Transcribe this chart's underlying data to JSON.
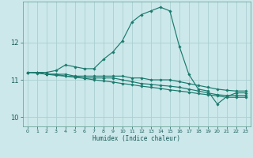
{
  "xlabel": "Humidex (Indice chaleur)",
  "bg_color": "#cce8ea",
  "grid_color": "#aacfd2",
  "line_color": "#1a7a6e",
  "xlim": [
    -0.5,
    23.5
  ],
  "ylim": [
    9.75,
    13.1
  ],
  "yticks": [
    10,
    11,
    12
  ],
  "xticks": [
    0,
    1,
    2,
    3,
    4,
    5,
    6,
    7,
    8,
    9,
    10,
    11,
    12,
    13,
    14,
    15,
    16,
    17,
    18,
    19,
    20,
    21,
    22,
    23
  ],
  "series": [
    {
      "x": [
        0,
        1,
        2,
        3,
        4,
        5,
        6,
        7,
        8,
        9,
        10,
        11,
        12,
        13,
        14,
        15,
        16,
        17,
        18,
        19,
        20,
        21,
        22,
        23
      ],
      "y": [
        11.2,
        11.2,
        11.2,
        11.25,
        11.4,
        11.35,
        11.3,
        11.3,
        11.55,
        11.75,
        12.05,
        12.55,
        12.75,
        12.85,
        12.95,
        12.85,
        11.9,
        11.15,
        10.75,
        10.7,
        10.35,
        10.55,
        10.65,
        10.65
      ]
    },
    {
      "x": [
        0,
        1,
        2,
        3,
        4,
        5,
        6,
        7,
        8,
        9,
        10,
        11,
        12,
        13,
        14,
        15,
        16,
        17,
        18,
        19,
        20,
        21,
        22,
        23
      ],
      "y": [
        11.2,
        11.2,
        11.15,
        11.15,
        11.15,
        11.1,
        11.1,
        11.1,
        11.1,
        11.1,
        11.1,
        11.05,
        11.05,
        11.0,
        11.0,
        11.0,
        10.95,
        10.9,
        10.85,
        10.8,
        10.75,
        10.72,
        10.7,
        10.7
      ]
    },
    {
      "x": [
        0,
        1,
        2,
        3,
        4,
        5,
        6,
        7,
        8,
        9,
        10,
        11,
        12,
        13,
        14,
        15,
        16,
        17,
        18,
        19,
        20,
        21,
        22,
        23
      ],
      "y": [
        11.2,
        11.2,
        11.15,
        11.15,
        11.1,
        11.08,
        11.05,
        11.05,
        11.05,
        11.05,
        11.0,
        10.95,
        10.9,
        10.88,
        10.85,
        10.83,
        10.8,
        10.75,
        10.7,
        10.65,
        10.6,
        10.58,
        10.58,
        10.58
      ]
    },
    {
      "x": [
        0,
        1,
        2,
        3,
        4,
        5,
        6,
        7,
        8,
        9,
        10,
        11,
        12,
        13,
        14,
        15,
        16,
        17,
        18,
        19,
        20,
        21,
        22,
        23
      ],
      "y": [
        11.2,
        11.18,
        11.15,
        11.12,
        11.1,
        11.07,
        11.04,
        11.0,
        10.97,
        10.94,
        10.9,
        10.87,
        10.83,
        10.8,
        10.77,
        10.73,
        10.7,
        10.67,
        10.63,
        10.6,
        10.57,
        10.53,
        10.53,
        10.53
      ]
    }
  ]
}
